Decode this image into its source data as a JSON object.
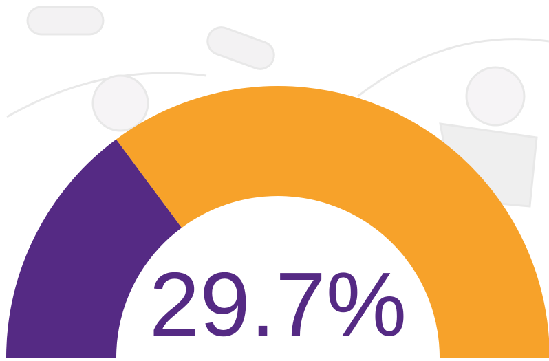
{
  "chart_data": {
    "type": "gauge",
    "value": 29.7,
    "value_label": "29.7%",
    "lim": [
      0,
      100
    ],
    "colors": [
      "#552a84",
      "#f7a22a"
    ]
  }
}
